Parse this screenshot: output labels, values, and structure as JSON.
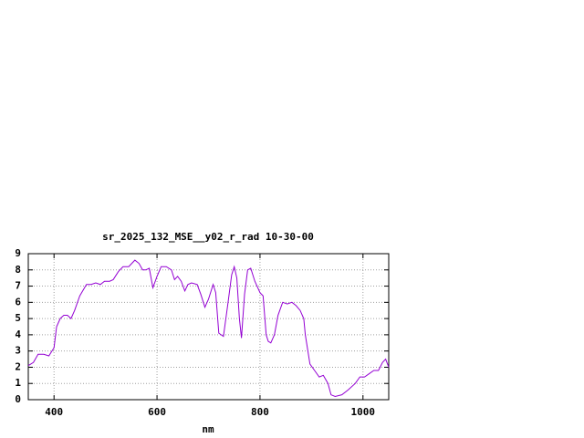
{
  "chart_data": {
    "type": "line",
    "title": "sr_2025_132_MSE__y02_r_rad 10-30-00",
    "xlabel": "nm",
    "x": [
      350,
      360,
      369,
      380,
      390,
      396,
      400,
      405,
      412,
      419,
      426,
      433,
      440,
      450,
      463,
      472,
      481,
      490,
      498,
      508,
      515,
      525,
      534,
      545,
      557,
      565,
      572,
      578,
      585,
      592,
      600,
      608,
      618,
      628,
      634,
      640,
      647,
      654,
      660,
      667,
      678,
      685,
      693,
      700,
      709,
      714,
      720,
      729,
      738,
      745,
      750,
      755,
      760,
      764,
      770,
      776,
      782,
      790,
      800,
      806,
      812,
      816,
      821,
      828,
      835,
      844,
      853,
      862,
      870,
      878,
      885,
      888,
      893,
      897,
      906,
      915,
      923,
      932,
      938,
      946,
      959,
      971,
      985,
      994,
      1003,
      1012,
      1021,
      1030,
      1038,
      1044,
      1050
    ],
    "series": [
      {
        "color": "#9400d3",
        "values": [
          2.1,
          2.3,
          2.8,
          2.8,
          2.7,
          3.0,
          3.2,
          4.5,
          5.0,
          5.2,
          5.2,
          5.0,
          5.5,
          6.4,
          7.1,
          7.1,
          7.2,
          7.1,
          7.3,
          7.3,
          7.4,
          7.9,
          8.2,
          8.2,
          8.6,
          8.4,
          8.0,
          8.0,
          8.1,
          6.9,
          7.6,
          8.2,
          8.2,
          8.0,
          7.4,
          7.6,
          7.3,
          6.7,
          7.1,
          7.2,
          7.1,
          6.5,
          5.7,
          6.2,
          7.1,
          6.6,
          4.1,
          3.9,
          6.0,
          7.7,
          8.2,
          7.5,
          5.0,
          3.8,
          6.5,
          8.0,
          8.1,
          7.3,
          6.6,
          6.4,
          4.0,
          3.6,
          3.5,
          4.0,
          5.2,
          6.0,
          5.9,
          6.0,
          5.8,
          5.5,
          5.0,
          4.0,
          3.0,
          2.2,
          1.8,
          1.4,
          1.5,
          1.0,
          0.3,
          0.2,
          0.3,
          0.6,
          1.0,
          1.4,
          1.4,
          1.6,
          1.8,
          1.8,
          2.3,
          2.5,
          2.0
        ]
      }
    ],
    "xlim": [
      350,
      1050
    ],
    "xticks": [
      400,
      600,
      800,
      1000
    ],
    "ylim": [
      0,
      9
    ],
    "yticks": [
      0,
      1,
      2,
      3,
      4,
      5,
      6,
      7,
      8,
      9
    ],
    "grid": true
  }
}
